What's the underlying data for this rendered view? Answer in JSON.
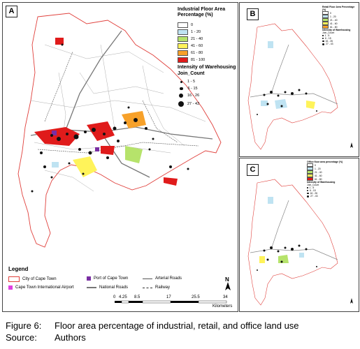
{
  "panels": {
    "a_label": "A",
    "b_label": "B",
    "c_label": "C"
  },
  "legend_a": {
    "floor_title": "Industrial Floor Area Percentage (%)",
    "floor_classes": [
      {
        "label": "0",
        "color": "#ffffff"
      },
      {
        "label": "1 - 20",
        "color": "#bfe3f2"
      },
      {
        "label": "21 - 40",
        "color": "#b6e36b"
      },
      {
        "label": "41 - 60",
        "color": "#fff35a"
      },
      {
        "label": "61 - 80",
        "color": "#f7a12a"
      },
      {
        "label": "81 - 100",
        "color": "#e01b1b"
      }
    ],
    "warehouse_title": "Intensity of Warehousing",
    "warehouse_subtitle": "Join_Count",
    "warehouse_classes": [
      "1 - 5",
      "6 - 15",
      "16 - 26",
      "27 - 43"
    ]
  },
  "legend_b": {
    "floor_title": "Retail Floor Area Percentage (%)",
    "floor_classes": [
      "0",
      "1 - 20",
      "21 - 40",
      "41 - 60",
      "61 - 80"
    ],
    "warehouse_title": "Intensity of Warehousing",
    "warehouse_subtitle": "Join_Count",
    "warehouse_classes": [
      "1 - 5",
      "6 - 15",
      "16 - 26",
      "27 - 43"
    ]
  },
  "legend_c": {
    "floor_title": "Office floor area percentage (%)",
    "floor_classes": [
      "0",
      "1 - 20",
      "21 - 40",
      "41 - 60",
      "61 - 80"
    ],
    "warehouse_title": "Intensity of Warehousing",
    "warehouse_subtitle": "Join_Count",
    "warehouse_classes": [
      "1 - 5",
      "6 - 15",
      "16 - 26",
      "27 - 43"
    ]
  },
  "legend": {
    "title": "Legend",
    "city": "City of Cape Town",
    "port": "Port of Cape Town",
    "arterial": "Arterial Roads",
    "airport": "Cape Town International Airport",
    "national": "National Roads",
    "railway": "Railway"
  },
  "scale": {
    "ticks": [
      "0",
      "4.25",
      "8.5",
      "17",
      "25.5",
      "34"
    ],
    "unit": "Kilometers"
  },
  "north": "N",
  "caption": {
    "figure_key": "Figure 6:",
    "figure_text": "Floor area percentage of industrial, retail, and office land use",
    "source_key": "Source:",
    "source_text": "Authors"
  },
  "colors": {
    "boundary": "#e0403c",
    "port": "#7a2ea3",
    "airport": "#e040e0"
  }
}
